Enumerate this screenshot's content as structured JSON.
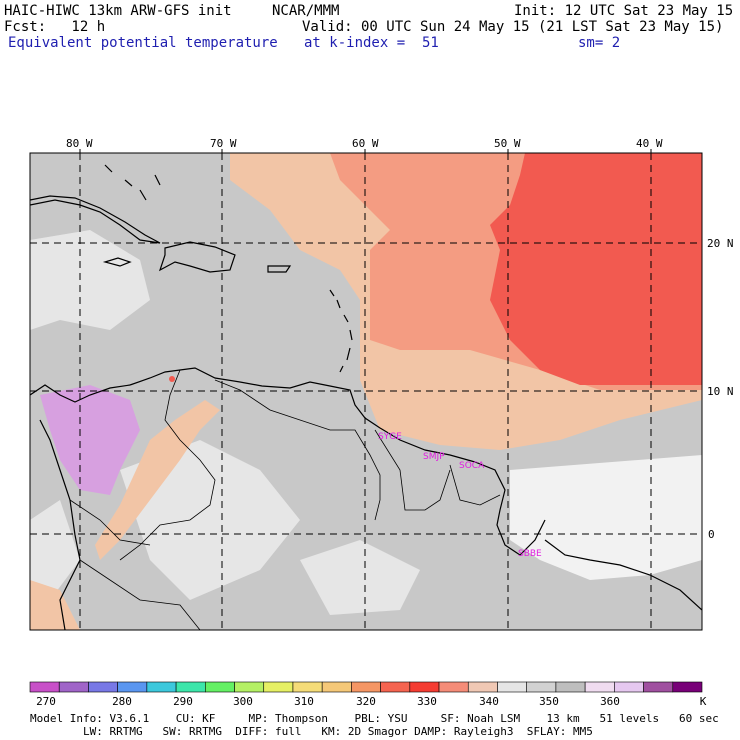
{
  "header": {
    "model_title": "HAIC-HIWC 13km ARW-GFS init",
    "org": "NCAR/MMM",
    "init": "Init: 12 UTC Sat 23 May 15",
    "fcst": "Fcst:   12 h",
    "valid": "Valid: 00 UTC Sun 24 May 15 (21 LST Sat 23 May 15)",
    "field": "Equivalent potential temperature",
    "level": "at k-index =  51",
    "smooth": "sm= 2"
  },
  "map": {
    "lon_labels": [
      "80 W",
      "70 W",
      "60 W",
      "50 W",
      "40 W"
    ],
    "lat_labels": [
      "20 N",
      "10 N",
      "0"
    ],
    "station_labels": [
      "SYGE",
      "SMJP",
      "SOCA",
      "SBBE"
    ],
    "region_colors": {
      "grey": "#c8c8c8",
      "light_grey": "#e6e6e6",
      "peach": "#f2c5a6",
      "salmon": "#f49c82",
      "red": "#f25a50",
      "lavender": "#d7a0e0",
      "white": "#f2f2f2"
    }
  },
  "colorbar": {
    "colors": [
      "#c850c8",
      "#a064c8",
      "#7878e6",
      "#5a96f0",
      "#3cc8dc",
      "#3ce6aa",
      "#64f064",
      "#b4f064",
      "#e6f064",
      "#f5dc78",
      "#f5c878",
      "#f59664",
      "#f56450",
      "#f53c32",
      "#f58c78",
      "#f0c8b4",
      "#e6e6e6",
      "#d2d2d2",
      "#bebebe",
      "#f0dcf0",
      "#e6c8f0",
      "#a050a0",
      "#780078"
    ],
    "labels": [
      "270",
      "280",
      "290",
      "300",
      "310",
      "320",
      "330",
      "340",
      "350",
      "360"
    ],
    "unit": "K"
  },
  "footer": {
    "line1": "Model Info: V3.6.1    CU: KF     MP: Thompson    PBL: YSU     SF: Noah LSM    13 km   51 levels   60 sec",
    "line2": "        LW: RRTMG   SW: RRTMG  DIFF: full   KM: 2D Smagor DAMP: Rayleigh3  SFLAY: MM5"
  }
}
